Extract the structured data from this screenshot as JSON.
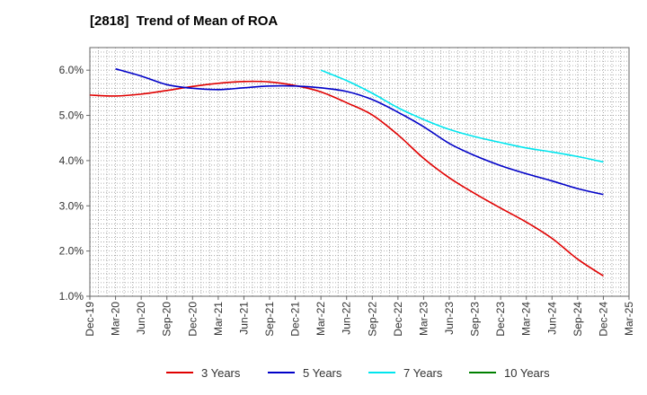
{
  "chart_data": {
    "type": "line",
    "title": "[2818]  Trend of Mean of ROA",
    "xlabel": "",
    "ylabel": "",
    "x": [
      "Dec-19",
      "Mar-20",
      "Jun-20",
      "Sep-20",
      "Dec-20",
      "Mar-21",
      "Jun-21",
      "Sep-21",
      "Dec-21",
      "Mar-22",
      "Jun-22",
      "Sep-22",
      "Dec-22",
      "Mar-23",
      "Jun-23",
      "Sep-23",
      "Dec-23",
      "Mar-24",
      "Jun-24",
      "Sep-24",
      "Dec-24",
      "Mar-25"
    ],
    "y_ticks": [
      "1.0%",
      "2.0%",
      "3.0%",
      "4.0%",
      "5.0%",
      "6.0%"
    ],
    "ylim": [
      1.0,
      6.5
    ],
    "grid": true,
    "legend_position": "bottom",
    "series": [
      {
        "name": "3 Years",
        "color": "#e00000",
        "values": [
          5.45,
          5.43,
          5.47,
          5.55,
          5.64,
          5.71,
          5.75,
          5.74,
          5.66,
          5.52,
          5.28,
          5.01,
          4.57,
          4.05,
          3.62,
          3.27,
          2.95,
          2.64,
          2.28,
          1.82,
          1.45,
          null
        ]
      },
      {
        "name": "5 Years",
        "color": "#0000c8",
        "values": [
          null,
          6.03,
          5.87,
          5.68,
          5.6,
          5.57,
          5.61,
          5.65,
          5.65,
          5.61,
          5.53,
          5.35,
          5.07,
          4.75,
          4.38,
          4.11,
          3.89,
          3.71,
          3.55,
          3.38,
          3.25,
          null
        ]
      },
      {
        "name": "7 Years",
        "color": "#00e5ee",
        "values": [
          null,
          null,
          null,
          null,
          null,
          null,
          null,
          null,
          null,
          6.0,
          5.77,
          5.49,
          5.17,
          4.91,
          4.69,
          4.53,
          4.4,
          4.28,
          4.19,
          4.09,
          3.97,
          null
        ]
      },
      {
        "name": "10 Years",
        "color": "#008000",
        "values": [
          null,
          null,
          null,
          null,
          null,
          null,
          null,
          null,
          null,
          null,
          null,
          null,
          null,
          null,
          null,
          null,
          null,
          null,
          null,
          null,
          null,
          null
        ]
      }
    ]
  }
}
